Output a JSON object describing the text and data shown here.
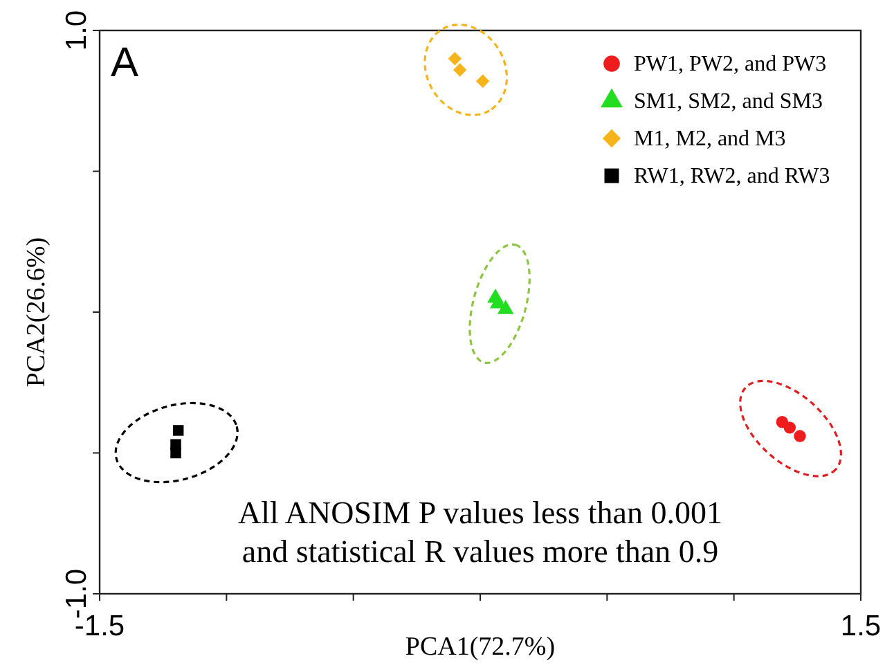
{
  "chart_data": {
    "type": "scatter",
    "xlabel": "PCA1(72.7%)",
    "ylabel": "PCA2(26.6%)",
    "xlim": [
      -1.5,
      1.5
    ],
    "xticks": [
      -1.5,
      {
        "value": -1,
        "label": null
      },
      {
        "value": -0.5,
        "label": null
      },
      {
        "value": 0,
        "label": null
      },
      {
        "value": 0.5,
        "label": null
      },
      {
        "value": 1,
        "label": null
      },
      1.5
    ],
    "ylim": [
      -1.0,
      1.0
    ],
    "yticks": [
      {
        "value": -1,
        "label": "-1.0"
      },
      {
        "value": -0.5,
        "label": null
      },
      {
        "value": 0,
        "label": null
      },
      {
        "value": 0.5,
        "label": null
      },
      {
        "value": 1,
        "label": "1.0"
      }
    ],
    "legend": "top right",
    "grid": false,
    "series": [
      {
        "name": "PW1, PW2, and PW3",
        "color": "#ee1c1c",
        "marker": "circle",
        "x": [
          1.19,
          1.22,
          1.26
        ],
        "values": [
          -0.39,
          -0.41,
          -0.44
        ]
      },
      {
        "name": "SM1, SM2, and SM3",
        "color": "#22dd22",
        "marker": "triangle",
        "x": [
          0.06,
          0.07,
          0.1
        ],
        "values": [
          0.05,
          0.03,
          0.01
        ]
      },
      {
        "name": "M1, M2, and M3",
        "color": "#f5b41a",
        "marker": "diamond",
        "x": [
          -0.1,
          -0.08,
          0.01
        ],
        "values": [
          0.9,
          0.86,
          0.82
        ]
      },
      {
        "name": "RW1, RW2, and RW3",
        "color": "#000000",
        "marker": "square",
        "x": [
          -1.19,
          -1.2,
          -1.2
        ],
        "values": [
          -0.42,
          -0.47,
          -0.5
        ]
      }
    ],
    "annotations": [
      "A",
      "All ANOSIM P values less than 0.001",
      "and statistical R values more than 0.9"
    ]
  }
}
